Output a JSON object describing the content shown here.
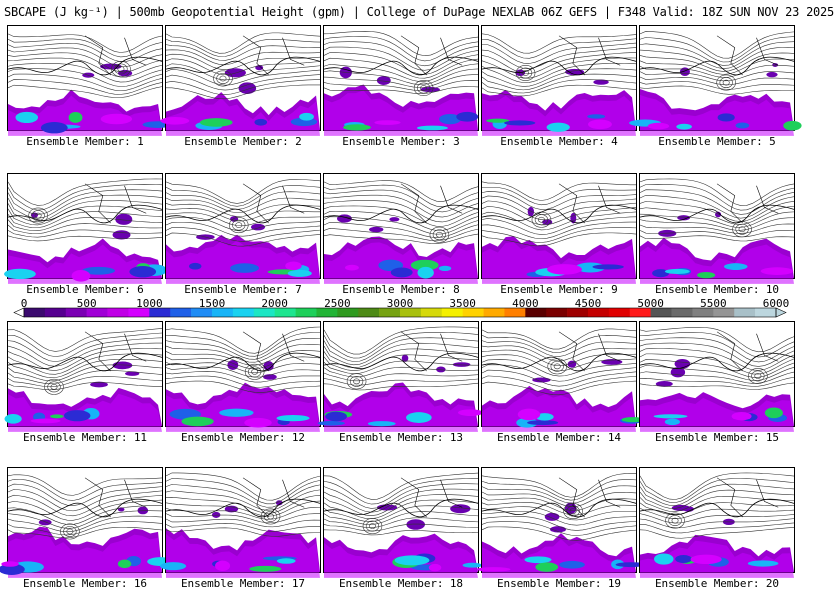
{
  "title": "SBCAPE (J kg⁻¹) | 500mb Geopotential Height (gpm) | College of DuPage NEXLAB 06Z GEFS | F348 Valid: 18Z SUN NOV 23 2025",
  "members": [
    "Ensemble Member: 1",
    "Ensemble Member: 2",
    "Ensemble Member: 3",
    "Ensemble Member: 4",
    "Ensemble Member: 5",
    "Ensemble Member: 6",
    "Ensemble Member: 7",
    "Ensemble Member: 8",
    "Ensemble Member: 9",
    "Ensemble Member: 10",
    "Ensemble Member: 11",
    "Ensemble Member: 12",
    "Ensemble Member: 13",
    "Ensemble Member: 14",
    "Ensemble Member: 15",
    "Ensemble Member: 16",
    "Ensemble Member: 17",
    "Ensemble Member: 18",
    "Ensemble Member: 19",
    "Ensemble Member: 20"
  ],
  "colorbar": {
    "ticks": [
      "0",
      "500",
      "1000",
      "1500",
      "2000",
      "2500",
      "3000",
      "3500",
      "4000",
      "4500",
      "5000",
      "5500",
      "6000"
    ],
    "colors": [
      "#3b0a6e",
      "#55008f",
      "#7a00b3",
      "#a000d6",
      "#c000e6",
      "#d400ff",
      "#2b2bd4",
      "#1f60e8",
      "#1f8cf5",
      "#18b4f7",
      "#1ad2f0",
      "#1ce6c4",
      "#1ee58f",
      "#1ecf5a",
      "#22b436",
      "#2f9a1f",
      "#4d8a16",
      "#76a212",
      "#a8c00e",
      "#d6d90a",
      "#f5f000",
      "#ffd200",
      "#ffaa00",
      "#ff7f00",
      "#5a0000",
      "#7a0000",
      "#9e0000",
      "#c40000",
      "#e00000",
      "#ff1a1a",
      "#555555",
      "#6a6a6a",
      "#808080",
      "#959595",
      "#a8c0c8",
      "#bcd6de"
    ]
  }
}
